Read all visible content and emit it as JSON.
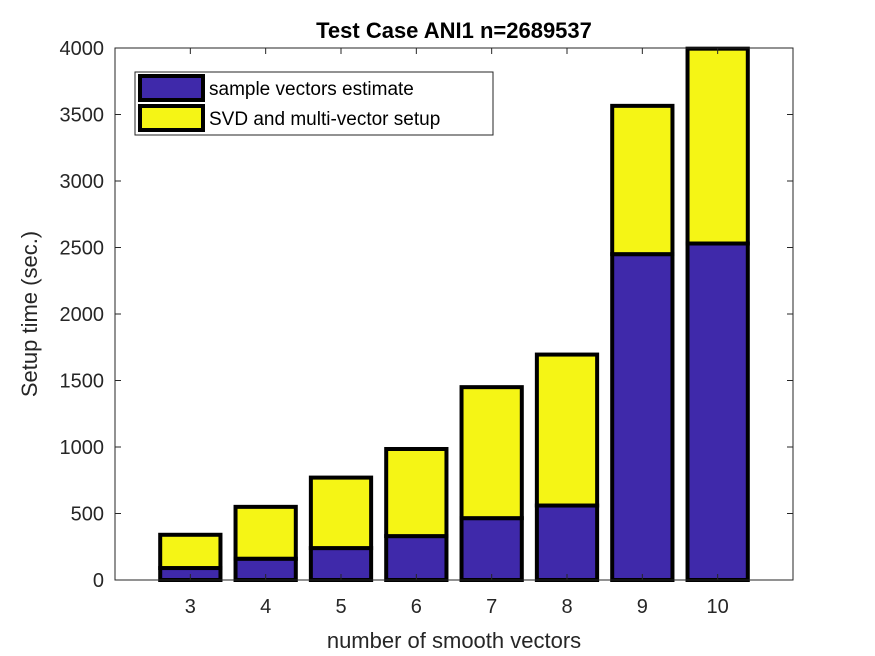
{
  "chart_data": {
    "type": "bar",
    "stacked": true,
    "title": "Test Case ANI1 n=2689537",
    "xlabel": "number of smooth vectors",
    "ylabel": "Setup time (sec.)",
    "categories": [
      "3",
      "4",
      "5",
      "6",
      "7",
      "8",
      "9",
      "10"
    ],
    "x_range": [
      2,
      11
    ],
    "ylim": [
      0,
      4000
    ],
    "yticks": [
      "0",
      "500",
      "1000",
      "1500",
      "2000",
      "2500",
      "3000",
      "3500",
      "4000"
    ],
    "grid": false,
    "legend_position": "top-left",
    "series": [
      {
        "name": "sample vectors estimate",
        "color": "#3f29aa",
        "values": [
          90,
          160,
          240,
          330,
          465,
          560,
          2450,
          2530
        ]
      },
      {
        "name": "SVD and multi-vector setup",
        "color": "#f5f515",
        "values": [
          250,
          390,
          530,
          655,
          985,
          1135,
          1115,
          1465
        ]
      }
    ]
  }
}
